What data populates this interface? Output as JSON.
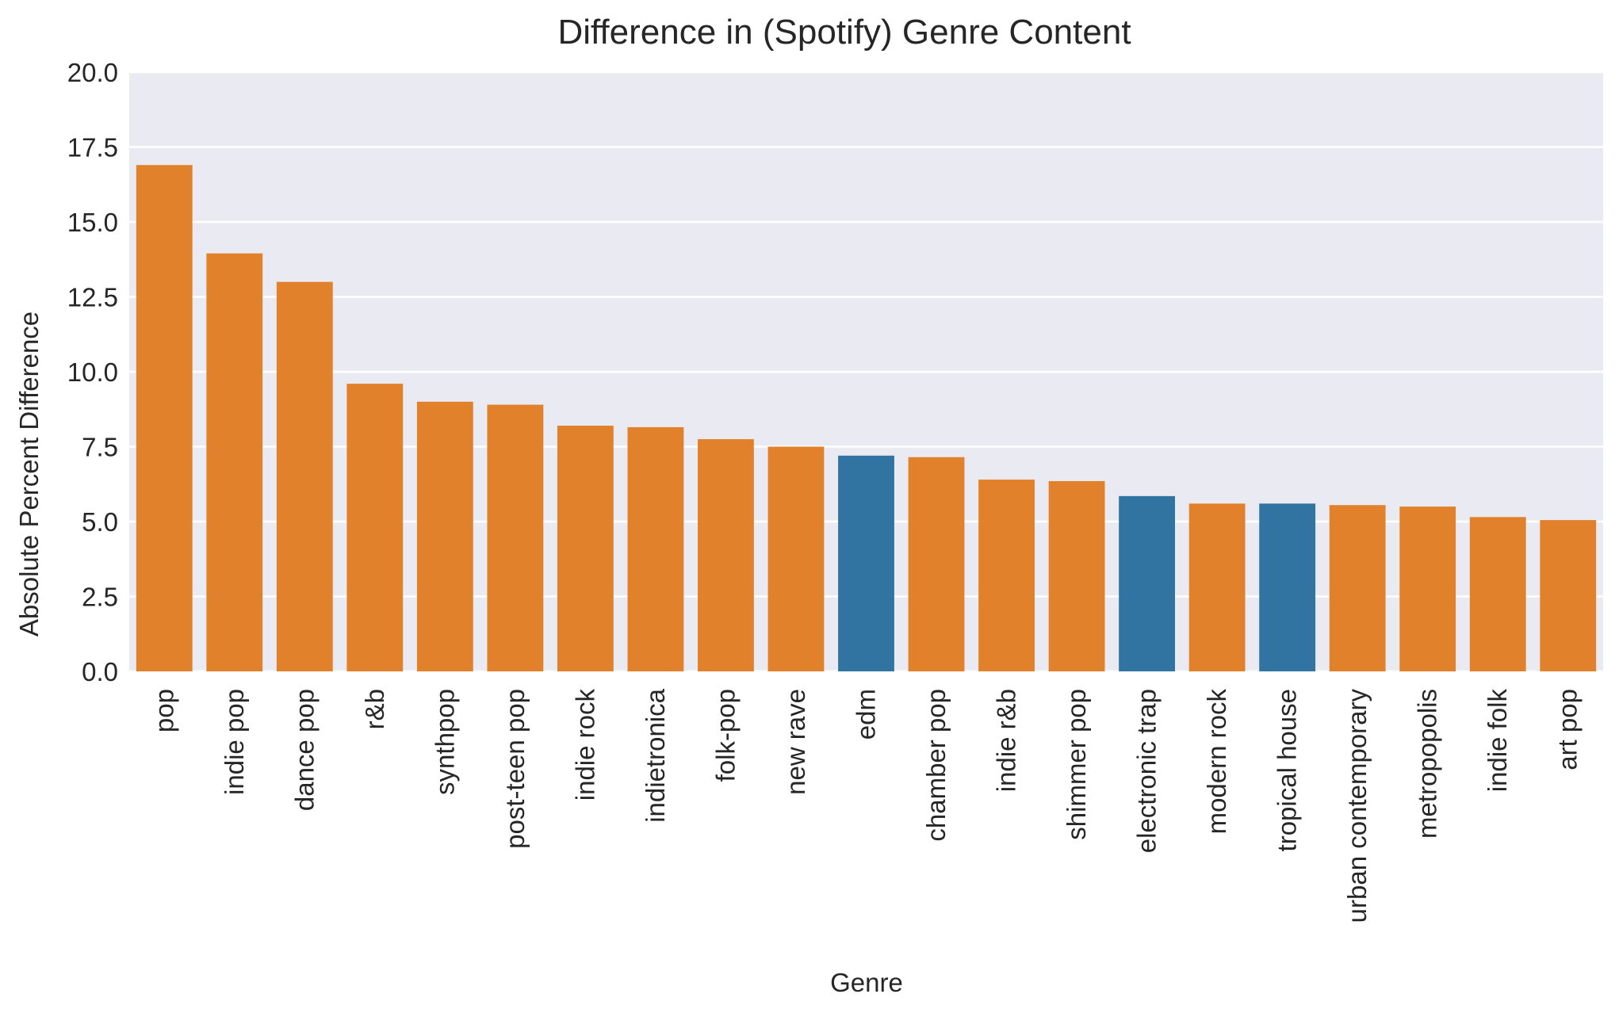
{
  "chart_data": {
    "type": "bar",
    "title": "Difference in (Spotify) Genre Content",
    "xlabel": "Genre",
    "ylabel": "Absolute Percent Difference",
    "ylim": [
      0,
      20
    ],
    "yticks": [
      "0.0",
      "2.5",
      "5.0",
      "7.5",
      "10.0",
      "12.5",
      "15.0",
      "17.5",
      "20.0"
    ],
    "ytick_values": [
      0,
      2.5,
      5,
      7.5,
      10,
      12.5,
      15,
      17.5,
      20
    ],
    "grid": true,
    "background_color": "#eaeaf2",
    "grid_color": "#ffffff",
    "colors": {
      "orange": "#e1812c",
      "blue": "#3274a1"
    },
    "categories": [
      "pop",
      "indie pop",
      "dance pop",
      "r&b",
      "synthpop",
      "post-teen pop",
      "indie rock",
      "indietronica",
      "folk-pop",
      "new rave",
      "edm",
      "chamber pop",
      "indie r&b",
      "shimmer pop",
      "electronic trap",
      "modern rock",
      "tropical house",
      "urban contemporary",
      "metropopolis",
      "indie folk",
      "art pop"
    ],
    "values": [
      16.9,
      13.95,
      13.0,
      9.6,
      9.0,
      8.9,
      8.2,
      8.15,
      7.75,
      7.5,
      7.2,
      7.15,
      6.4,
      6.35,
      5.85,
      5.6,
      5.6,
      5.55,
      5.5,
      5.15,
      5.05
    ],
    "bar_colors": [
      "orange",
      "orange",
      "orange",
      "orange",
      "orange",
      "orange",
      "orange",
      "orange",
      "orange",
      "orange",
      "blue",
      "orange",
      "orange",
      "orange",
      "blue",
      "orange",
      "blue",
      "orange",
      "orange",
      "orange",
      "orange"
    ]
  }
}
